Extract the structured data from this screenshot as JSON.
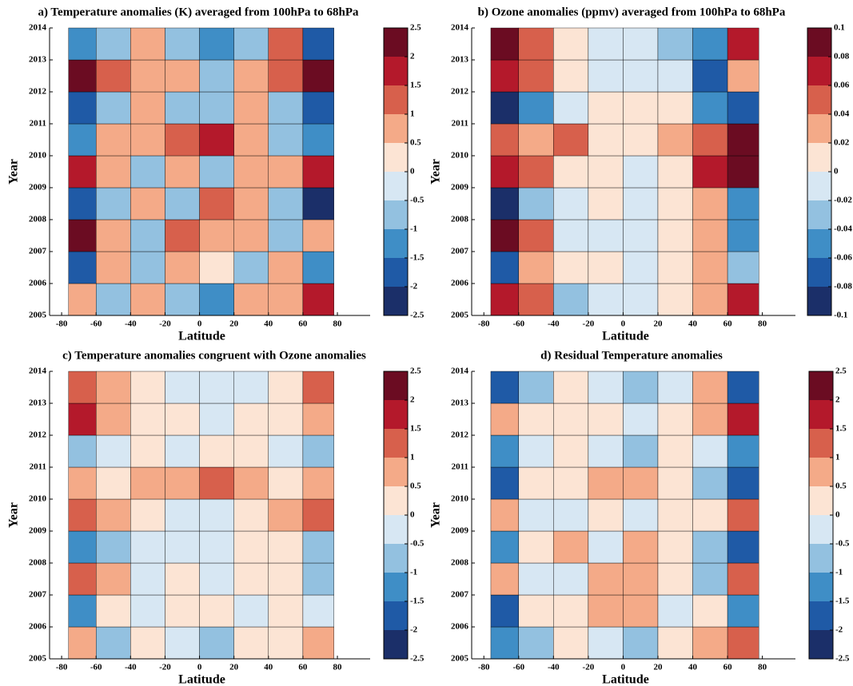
{
  "chart_data": [
    {
      "type": "heatmap",
      "title": "a) Temperature anomalies (K) averaged from 100hPa to 68hPa",
      "xlabel": "Latitude",
      "ylabel": "Year",
      "xlim": [
        -87,
        99
      ],
      "xticks": [
        -80,
        -60,
        -40,
        -20,
        0,
        20,
        40,
        60,
        80
      ],
      "ylim": [
        2005,
        2014
      ],
      "yticks": [
        2005,
        2006,
        2007,
        2008,
        2009,
        2010,
        2011,
        2012,
        2013,
        2014
      ],
      "x_edges": [
        -76,
        -60,
        -40,
        -20,
        0,
        20,
        40,
        60,
        78
      ],
      "y_edges": [
        2005,
        2006,
        2007,
        2008,
        2009,
        2010,
        2011,
        2012,
        2013,
        2014
      ],
      "levels": [
        -2.5,
        -2,
        -1.5,
        -1,
        -0.5,
        0,
        0.5,
        1,
        1.5,
        2,
        2.5
      ],
      "colors": [
        "#1b2f69",
        "#1f5aa6",
        "#3f8ec6",
        "#93c1e0",
        "#d7e7f3",
        "#fce4d4",
        "#f4aa88",
        "#d7604c",
        "#b4192b",
        "#6b0c22"
      ],
      "z": [
        [
          1,
          -0.7,
          0.6,
          -0.6,
          -1,
          0.6,
          0.6,
          1.6
        ],
        [
          -1.6,
          0.6,
          -0.6,
          0.6,
          0.3,
          -0.6,
          0.6,
          -1.1
        ],
        [
          2.1,
          0.6,
          -0.6,
          1.1,
          0.6,
          0.6,
          -0.6,
          0.6
        ],
        [
          -1.6,
          -0.6,
          0.6,
          -0.6,
          1.1,
          0.6,
          -0.6,
          -2.1
        ],
        [
          1.6,
          0.6,
          -0.6,
          0.6,
          -0.6,
          0.6,
          0.6,
          1.6
        ],
        [
          -1.1,
          0.6,
          0.6,
          1.1,
          1.6,
          0.6,
          -0.6,
          -1.1
        ],
        [
          -1.6,
          -0.6,
          0.6,
          -0.6,
          -0.6,
          0.6,
          -0.6,
          -1.6
        ],
        [
          2.1,
          1.1,
          0.6,
          0.6,
          -0.6,
          0.6,
          1.1,
          2.1
        ],
        [
          -1.1,
          -0.6,
          0.6,
          -0.6,
          -1.1,
          -0.6,
          1.1,
          -1.6
        ]
      ]
    },
    {
      "type": "heatmap",
      "title": "b) Ozone anomalies (ppmv) averaged from 100hPa to 68hPa",
      "xlabel": "Latitude",
      "ylabel": "Year",
      "xlim": [
        -87,
        99
      ],
      "xticks": [
        -80,
        -60,
        -40,
        -20,
        0,
        20,
        40,
        60,
        80
      ],
      "ylim": [
        2005,
        2014
      ],
      "yticks": [
        2005,
        2006,
        2007,
        2008,
        2009,
        2010,
        2011,
        2012,
        2013,
        2014
      ],
      "x_edges": [
        -76,
        -60,
        -40,
        -20,
        0,
        20,
        40,
        60,
        78
      ],
      "y_edges": [
        2005,
        2006,
        2007,
        2008,
        2009,
        2010,
        2011,
        2012,
        2013,
        2014
      ],
      "levels": [
        -0.1,
        -0.08,
        -0.06,
        -0.04,
        -0.02,
        0,
        0.02,
        0.04,
        0.06,
        0.08,
        0.1
      ],
      "colors": [
        "#1b2f69",
        "#1f5aa6",
        "#3f8ec6",
        "#93c1e0",
        "#d7e7f3",
        "#fce4d4",
        "#f4aa88",
        "#d7604c",
        "#b4192b",
        "#6b0c22"
      ],
      "z": [
        [
          0.065,
          0.045,
          -0.025,
          -0.01,
          -0.01,
          0.01,
          0.035,
          0.065
        ],
        [
          -0.065,
          0.025,
          0.01,
          0.005,
          -0.005,
          0.01,
          0.035,
          -0.035
        ],
        [
          0.085,
          0.055,
          -0.01,
          -0.005,
          -0.005,
          0.01,
          0.025,
          -0.045
        ],
        [
          -0.085,
          -0.035,
          -0.01,
          0.005,
          -0.005,
          0.005,
          0.025,
          -0.055
        ],
        [
          0.075,
          0.045,
          0.01,
          0.01,
          -0.01,
          0.01,
          0.065,
          0.09
        ],
        [
          0.045,
          0.025,
          0.045,
          0.01,
          0.01,
          0.025,
          0.055,
          0.085
        ],
        [
          -0.085,
          -0.045,
          -0.005,
          0.005,
          0.01,
          0.01,
          -0.045,
          -0.065
        ],
        [
          0.065,
          0.045,
          0.01,
          -0.005,
          -0.005,
          -0.01,
          -0.065,
          0.035
        ],
        [
          0.085,
          0.045,
          0.01,
          -0.01,
          -0.005,
          -0.025,
          -0.045,
          0.065
        ]
      ]
    },
    {
      "type": "heatmap",
      "title": "c) Temperature anomalies congruent with Ozone anomalies",
      "xlabel": "Latitude",
      "ylabel": "Year",
      "xlim": [
        -87,
        99
      ],
      "xticks": [
        -80,
        -60,
        -40,
        -20,
        0,
        20,
        40,
        60,
        80
      ],
      "ylim": [
        2005,
        2014
      ],
      "yticks": [
        2005,
        2006,
        2007,
        2008,
        2009,
        2010,
        2011,
        2012,
        2013,
        2014
      ],
      "x_edges": [
        -76,
        -60,
        -40,
        -20,
        0,
        20,
        40,
        60,
        78
      ],
      "y_edges": [
        2005,
        2006,
        2007,
        2008,
        2009,
        2010,
        2011,
        2012,
        2013,
        2014
      ],
      "levels": [
        -2.5,
        -2,
        -1.5,
        -1,
        -0.5,
        0,
        0.5,
        1,
        1.5,
        2,
        2.5
      ],
      "colors": [
        "#1b2f69",
        "#1f5aa6",
        "#3f8ec6",
        "#93c1e0",
        "#d7e7f3",
        "#fce4d4",
        "#f4aa88",
        "#d7604c",
        "#b4192b",
        "#6b0c22"
      ],
      "z": [
        [
          0.6,
          -0.6,
          0.3,
          -0.3,
          -0.6,
          0.3,
          0.3,
          0.6
        ],
        [
          -1.1,
          0.3,
          -0.3,
          0.3,
          0.3,
          -0.3,
          0.3,
          -0.3
        ],
        [
          1.1,
          0.6,
          -0.3,
          0.3,
          -0.3,
          0.3,
          0.3,
          -0.6
        ],
        [
          -1.1,
          -0.6,
          -0.3,
          -0.3,
          -0.3,
          0.3,
          0.3,
          -0.6
        ],
        [
          1.1,
          0.6,
          0.3,
          -0.3,
          -0.3,
          0.3,
          0.6,
          1.1
        ],
        [
          0.6,
          0.3,
          0.6,
          0.6,
          1.1,
          0.6,
          0.3,
          0.6
        ],
        [
          -0.6,
          -0.3,
          0.3,
          -0.3,
          0.3,
          0.3,
          -0.3,
          -0.6
        ],
        [
          1.6,
          0.6,
          0.3,
          0.3,
          -0.3,
          0.3,
          0.3,
          0.6
        ],
        [
          1.1,
          0.6,
          0.3,
          -0.3,
          -0.3,
          -0.3,
          0.3,
          1.1
        ]
      ]
    },
    {
      "type": "heatmap",
      "title": "d) Residual Temperature anomalies",
      "xlabel": "Latitude",
      "ylabel": "Year",
      "xlim": [
        -87,
        99
      ],
      "xticks": [
        -80,
        -60,
        -40,
        -20,
        0,
        20,
        40,
        60,
        80
      ],
      "ylim": [
        2005,
        2014
      ],
      "yticks": [
        2005,
        2006,
        2007,
        2008,
        2009,
        2010,
        2011,
        2012,
        2013,
        2014
      ],
      "x_edges": [
        -76,
        -60,
        -40,
        -20,
        0,
        20,
        40,
        60,
        78
      ],
      "y_edges": [
        2005,
        2006,
        2007,
        2008,
        2009,
        2010,
        2011,
        2012,
        2013,
        2014
      ],
      "levels": [
        -2.5,
        -2,
        -1.5,
        -1,
        -0.5,
        0,
        0.5,
        1,
        1.5,
        2,
        2.5
      ],
      "colors": [
        "#1b2f69",
        "#1f5aa6",
        "#3f8ec6",
        "#93c1e0",
        "#d7e7f3",
        "#fce4d4",
        "#f4aa88",
        "#d7604c",
        "#b4192b",
        "#6b0c22"
      ],
      "z": [
        [
          -1.1,
          -0.6,
          0.3,
          -0.3,
          -0.6,
          0.3,
          0.6,
          1.1
        ],
        [
          -1.6,
          0.3,
          0.3,
          0.6,
          0.6,
          -0.3,
          0.3,
          -1.1
        ],
        [
          0.6,
          -0.3,
          -0.3,
          0.6,
          0.6,
          0.3,
          -0.6,
          1.1
        ],
        [
          -1.1,
          0.3,
          0.6,
          -0.3,
          0.6,
          0.3,
          -0.6,
          -1.6
        ],
        [
          0.6,
          -0.3,
          -0.3,
          0.3,
          -0.3,
          0.3,
          0.3,
          1.1
        ],
        [
          -1.6,
          0.3,
          0.3,
          0.6,
          0.6,
          0.3,
          -0.6,
          -1.6
        ],
        [
          -1.1,
          -0.3,
          0.3,
          -0.3,
          -0.6,
          0.3,
          -0.3,
          -1.1
        ],
        [
          0.6,
          0.3,
          0.3,
          0.3,
          -0.3,
          0.3,
          0.6,
          1.6
        ],
        [
          -1.6,
          -0.6,
          0.3,
          -0.3,
          -0.6,
          -0.3,
          0.6,
          -1.6
        ]
      ]
    }
  ]
}
